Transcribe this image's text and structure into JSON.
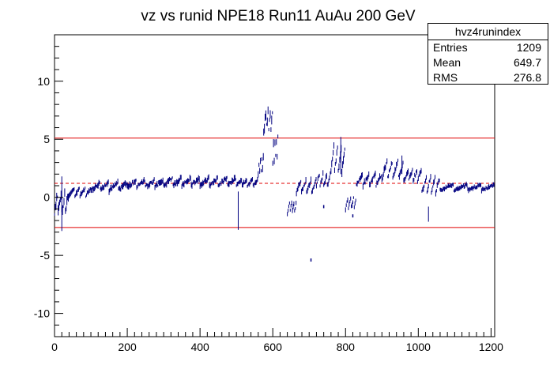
{
  "chart_data": {
    "type": "scatter",
    "title": "vz vs runid NPE18 Run11 AuAu 200 GeV",
    "xlabel": "",
    "ylabel": "",
    "xlim": [
      0,
      1210
    ],
    "ylim": [
      -12,
      14
    ],
    "x_ticks": [
      0,
      200,
      400,
      600,
      800,
      1000,
      1200
    ],
    "y_ticks": [
      -10,
      -5,
      0,
      5,
      10
    ],
    "grid": false,
    "reference_lines": [
      {
        "kind": "upper",
        "y": 5.1,
        "color": "#e00000",
        "style": "solid"
      },
      {
        "kind": "mean",
        "y": 1.2,
        "color": "#e00000",
        "style": "dashed"
      },
      {
        "kind": "lower",
        "y": -2.6,
        "color": "#e00000",
        "style": "solid"
      }
    ],
    "marker_color": "#000080",
    "segments": [
      {
        "x": [
          0,
          40
        ],
        "y": [
          -1.2,
          0.5
        ],
        "spread": 1.4
      },
      {
        "x": [
          40,
          100
        ],
        "y": [
          0.1,
          0.8
        ],
        "spread": 0.6
      },
      {
        "x": [
          100,
          200
        ],
        "y": [
          0.6,
          1.3
        ],
        "spread": 0.7
      },
      {
        "x": [
          200,
          300
        ],
        "y": [
          0.9,
          1.5
        ],
        "spread": 0.7
      },
      {
        "x": [
          300,
          400
        ],
        "y": [
          1.0,
          1.7
        ],
        "spread": 0.7
      },
      {
        "x": [
          400,
          500
        ],
        "y": [
          1.0,
          1.7
        ],
        "spread": 0.7
      },
      {
        "x": [
          500,
          560
        ],
        "y": [
          1.0,
          1.6
        ],
        "spread": 0.6
      },
      {
        "x": [
          560,
          575
        ],
        "y": [
          2.0,
          3.8
        ],
        "spread": 1.0
      },
      {
        "x": [
          575,
          600
        ],
        "y": [
          5.6,
          7.4
        ],
        "spread": 1.4
      },
      {
        "x": [
          600,
          615
        ],
        "y": [
          3.0,
          6.0
        ],
        "spread": 1.2
      },
      {
        "x": [
          640,
          665
        ],
        "y": [
          -1.4,
          -0.4
        ],
        "spread": 0.5
      },
      {
        "x": [
          665,
          720
        ],
        "y": [
          0.4,
          1.6
        ],
        "spread": 0.6
      },
      {
        "x": [
          720,
          760
        ],
        "y": [
          1.0,
          2.2
        ],
        "spread": 0.7
      },
      {
        "x": [
          760,
          800
        ],
        "y": [
          2.2,
          4.8
        ],
        "spread": 1.0
      },
      {
        "x": [
          800,
          830
        ],
        "y": [
          -1.0,
          0.0
        ],
        "spread": 0.5
      },
      {
        "x": [
          830,
          900
        ],
        "y": [
          1.0,
          2.0
        ],
        "spread": 0.7
      },
      {
        "x": [
          900,
          960
        ],
        "y": [
          1.6,
          3.2
        ],
        "spread": 0.8
      },
      {
        "x": [
          960,
          1010
        ],
        "y": [
          1.4,
          2.4
        ],
        "spread": 0.7
      },
      {
        "x": [
          1010,
          1060
        ],
        "y": [
          0.4,
          1.8
        ],
        "spread": 0.7
      },
      {
        "x": [
          1060,
          1210
        ],
        "y": [
          0.6,
          1.1
        ],
        "spread": 0.5
      }
    ],
    "spikes": [
      {
        "x": 20,
        "y": [
          -2.9,
          1.8
        ]
      },
      {
        "x": 505,
        "y": [
          -2.8,
          0.5
        ]
      },
      {
        "x": 1028,
        "y": [
          -2.1,
          -0.8
        ]
      },
      {
        "x": 787,
        "y": [
          2.0,
          5.2
        ]
      },
      {
        "x": 955,
        "y": [
          2.0,
          3.6
        ]
      }
    ],
    "points": [
      {
        "x": 705,
        "y": -5.4
      },
      {
        "x": 740,
        "y": -0.8
      },
      {
        "x": 820,
        "y": -1.6
      }
    ]
  },
  "stats": {
    "name": "hvz4runindex",
    "entries_label": "Entries",
    "entries": "1209",
    "mean_label": "Mean",
    "mean": "649.7",
    "rms_label": "RMS",
    "rms": "276.8"
  }
}
